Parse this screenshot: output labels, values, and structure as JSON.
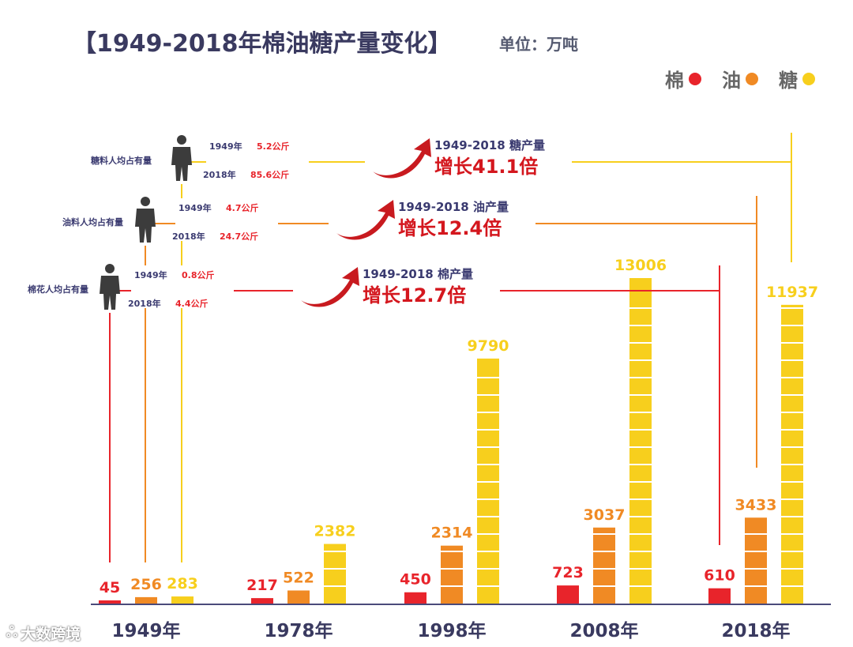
{
  "title": "【1949-2018年棉油糖产量变化】",
  "unit_label": "单位：万吨",
  "legend": [
    {
      "label": "棉",
      "color": "#e8242b"
    },
    {
      "label": "油",
      "color": "#f08a24"
    },
    {
      "label": "糖",
      "color": "#f7cf1d"
    }
  ],
  "watermark": "大数跨境",
  "watermark_icon": "weibo-logo-icon",
  "chart_data": {
    "type": "bar",
    "categories": [
      "1949年",
      "1978年",
      "1998年",
      "2008年",
      "2018年"
    ],
    "series": [
      {
        "name": "棉",
        "color": "#e8242b",
        "values": [
          45,
          217,
          450,
          723,
          610
        ]
      },
      {
        "name": "油",
        "color": "#f08a24",
        "values": [
          256,
          522,
          2314,
          3037,
          3433
        ]
      },
      {
        "name": "糖",
        "color": "#f7cf1d",
        "values": [
          283,
          2382,
          9790,
          13006,
          11937
        ]
      }
    ],
    "ylim": [
      0,
      13006
    ],
    "value_labels": [
      "45",
      "256",
      "283",
      "217",
      "522",
      "2382",
      "450",
      "2314",
      "9790",
      "723",
      "3037",
      "13006",
      "610",
      "3433",
      "11937"
    ],
    "annotations": [
      {
        "series": "糖",
        "color": "#f7cf1d",
        "per_capita_label": "糖料人均占有量",
        "y1949_label": "1949年",
        "y1949_value": "5.2公斤",
        "y2018_label": "2018年",
        "y2018_value": "85.6公斤",
        "growth_title": "1949-2018  糖产量",
        "growth_text": "增长41.1倍"
      },
      {
        "series": "油",
        "color": "#f08a24",
        "per_capita_label": "油料人均占有量",
        "y1949_label": "1949年",
        "y1949_value": "4.7公斤",
        "y2018_label": "2018年",
        "y2018_value": "24.7公斤",
        "growth_title": "1949-2018  油产量",
        "growth_text": "增长12.4倍"
      },
      {
        "series": "棉",
        "color": "#e8242b",
        "per_capita_label": "棉花人均占有量",
        "y1949_label": "1949年",
        "y1949_value": "0.8公斤",
        "y2018_label": "2018年",
        "y2018_value": "4.4公斤",
        "growth_title": "1949-2018  棉产量",
        "growth_text": "增长12.7倍"
      }
    ]
  }
}
